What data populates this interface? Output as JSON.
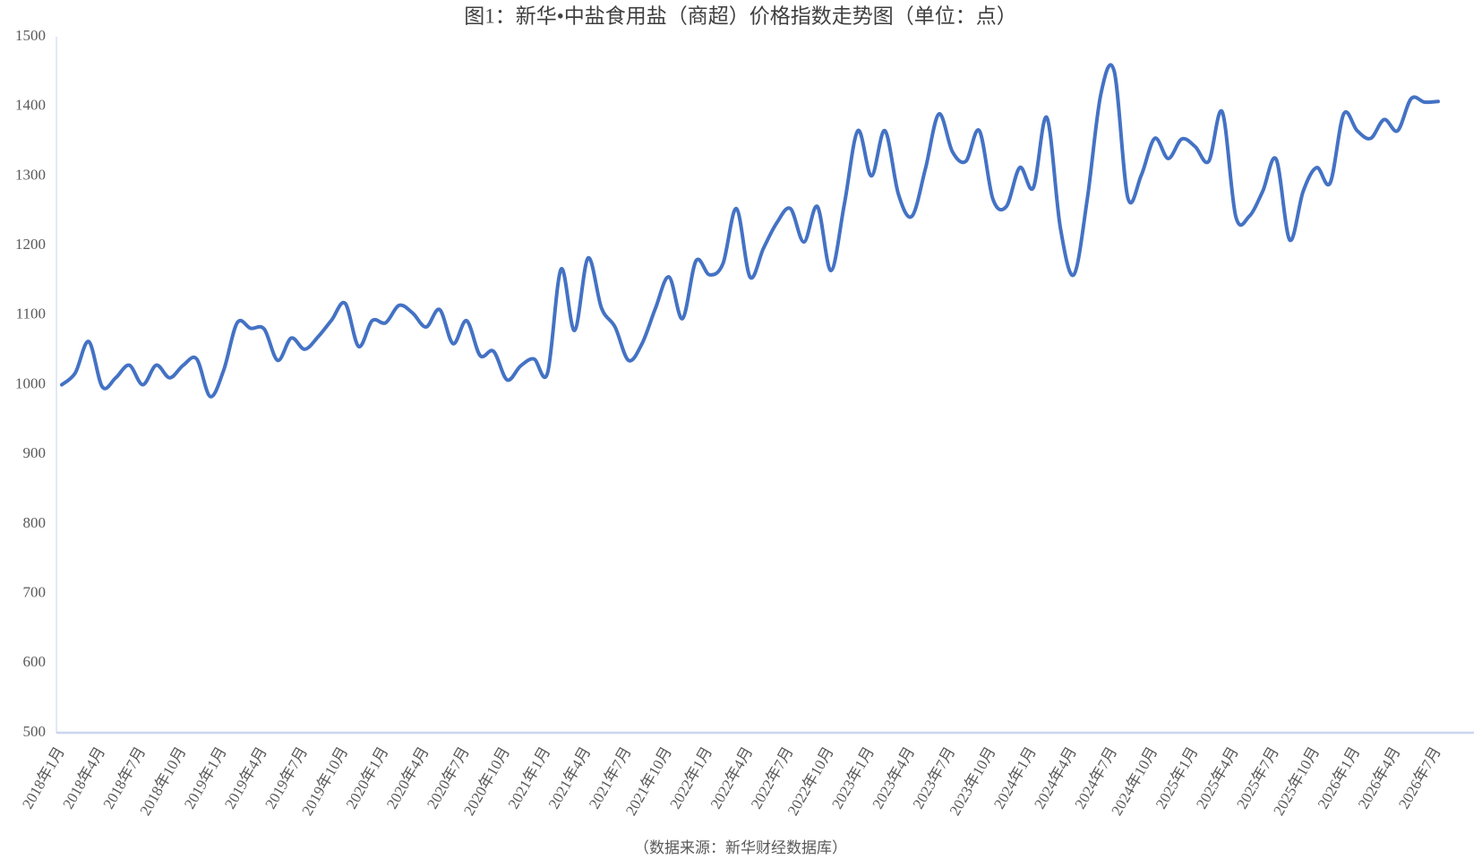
{
  "chart_data": {
    "type": "line",
    "title": "图1：新华•中盐食用盐（商超）价格指数走势图（单位：点）",
    "source": "（数据来源：新华财经数据库）",
    "categories": [
      "2018年1月",
      null,
      null,
      "2018年4月",
      null,
      null,
      "2018年7月",
      null,
      null,
      "2018年10月",
      null,
      null,
      "2019年1月",
      null,
      null,
      "2019年4月",
      null,
      null,
      "2019年7月",
      null,
      null,
      "2019年10月",
      null,
      null,
      "2020年1月",
      null,
      null,
      "2020年4月",
      null,
      null,
      "2020年7月",
      null,
      null,
      "2020年10月",
      null,
      null,
      "2021年1月",
      null,
      null,
      "2021年4月",
      null,
      null,
      "2021年7月",
      null,
      null,
      "2021年10月",
      null,
      null,
      "2022年1月",
      null,
      null,
      "2022年4月",
      null,
      null,
      "2022年7月",
      null,
      null,
      "2022年10月",
      null,
      null,
      "2023年1月",
      null,
      null,
      "2023年4月",
      null,
      null,
      "2023年7月",
      null,
      null,
      "2023年10月",
      null,
      null,
      "2024年1月",
      null,
      null,
      "2024年4月",
      null,
      null,
      "2024年7月",
      null,
      null,
      "2024年10月",
      null,
      null,
      "2025年1月",
      null,
      null,
      "2025年4月",
      null,
      null,
      "2025年7月",
      null,
      null,
      "2025年10月",
      null,
      null,
      "2026年1月",
      null,
      null,
      "2026年4月",
      null,
      null,
      "2026年7月"
    ],
    "values": [
      1000,
      1017,
      1062,
      997,
      1010,
      1028,
      1000,
      1028,
      1010,
      1028,
      1037,
      983,
      1021,
      1089,
      1081,
      1080,
      1035,
      1067,
      1051,
      1069,
      1093,
      1117,
      1055,
      1092,
      1089,
      1114,
      1103,
      1083,
      1108,
      1059,
      1092,
      1042,
      1048,
      1007,
      1027,
      1037,
      1017,
      1166,
      1078,
      1182,
      1110,
      1083,
      1035,
      1059,
      1110,
      1155,
      1095,
      1178,
      1158,
      1174,
      1253,
      1155,
      1196,
      1233,
      1253,
      1205,
      1256,
      1164,
      1260,
      1365,
      1300,
      1365,
      1274,
      1242,
      1310,
      1389,
      1335,
      1321,
      1365,
      1267,
      1256,
      1312,
      1283,
      1384,
      1226,
      1158,
      1267,
      1417,
      1450,
      1269,
      1301,
      1354,
      1325,
      1353,
      1342,
      1321,
      1392,
      1242,
      1242,
      1278,
      1324,
      1208,
      1278,
      1312,
      1290,
      1389,
      1365,
      1354,
      1381,
      1365,
      1411,
      1406,
      1407
    ],
    "color": "#4472c4",
    "ylim": [
      500,
      1500
    ],
    "yticks": [
      500,
      600,
      700,
      800,
      900,
      1000,
      1100,
      1200,
      1300,
      1400,
      1500
    ],
    "grid": false
  }
}
